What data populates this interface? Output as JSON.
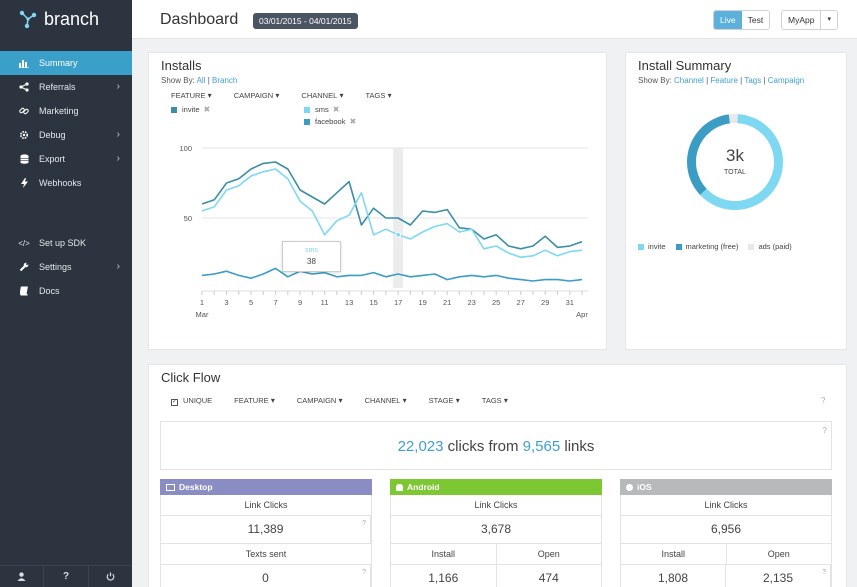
{
  "app": {
    "logo_text": "branch"
  },
  "sidebar": {
    "items": [
      {
        "label": "Summary",
        "icon": "bar-chart-icon",
        "active": true,
        "chevron": false
      },
      {
        "label": "Referrals",
        "icon": "share-icon",
        "active": false,
        "chevron": true
      },
      {
        "label": "Marketing",
        "icon": "link-icon",
        "active": false,
        "chevron": false
      },
      {
        "label": "Debug",
        "icon": "gear-icon",
        "active": false,
        "chevron": true
      },
      {
        "label": "Export",
        "icon": "database-icon",
        "active": false,
        "chevron": true
      },
      {
        "label": "Webhooks",
        "icon": "bolt-icon",
        "active": false,
        "chevron": false
      }
    ],
    "items2": [
      {
        "label": "Set up SDK",
        "icon": "code-icon",
        "chevron": false
      },
      {
        "label": "Settings",
        "icon": "wrench-icon",
        "chevron": true
      },
      {
        "label": "Docs",
        "icon": "book-icon",
        "chevron": false
      }
    ],
    "footer": [
      "user-icon",
      "help-icon",
      "power-icon"
    ]
  },
  "header": {
    "title": "Dashboard",
    "date_range": "03/01/2015 - 04/01/2015",
    "live_label": "Live",
    "test_label": "Test",
    "app_name": "MyApp"
  },
  "installs": {
    "title": "Installs",
    "show_by_prefix": "Show By:",
    "show_by_all": "All",
    "show_by_branch": "Branch",
    "filters": [
      "FEATURE",
      "CAMPAIGN",
      "CHANNEL",
      "TAGS"
    ],
    "tags": [
      {
        "label": "invite",
        "color": "#3b8ea5"
      },
      {
        "label": "sms",
        "color": "#7fd8f2"
      },
      {
        "label": "facebook",
        "color": "#3b9cc4"
      }
    ],
    "tooltip": {
      "series": "sms",
      "value": "38"
    }
  },
  "summary": {
    "title": "Install Summary",
    "show_by_prefix": "Show By:",
    "links": [
      "Channel",
      "Feature",
      "Tags",
      "Campaign"
    ],
    "total_value": "3k",
    "total_label": "TOTAL",
    "legend": [
      {
        "label": "invite",
        "color": "#7fd8f2"
      },
      {
        "label": "marketing (free)",
        "color": "#3b9cc4"
      },
      {
        "label": "ads (paid)",
        "color": "#e6e8ea"
      }
    ]
  },
  "clickflow": {
    "title": "Click Flow",
    "filters": [
      "UNIQUE",
      "FEATURE",
      "CAMPAIGN",
      "CHANNEL",
      "STAGE",
      "TAGS"
    ],
    "clicks": "22,023",
    "clicks_mid": "clicks from",
    "links": "9,565",
    "links_suffix": "links",
    "desktop": {
      "label": "Desktop",
      "color": "#8a8cc4",
      "link_clicks_label": "Link Clicks",
      "link_clicks": "11,389",
      "texts_label": "Texts sent",
      "texts": "0"
    },
    "android": {
      "label": "Android",
      "color": "#7dc832",
      "link_clicks_label": "Link Clicks",
      "link_clicks": "3,678",
      "install_label": "Install",
      "install": "1,166",
      "open_label": "Open",
      "open": "474"
    },
    "ios": {
      "label": "iOS",
      "color": "#b8b9bb",
      "link_clicks_label": "Link Clicks",
      "link_clicks": "6,956",
      "install_label": "Install",
      "install": "1,808",
      "open_label": "Open",
      "open": "2,135"
    }
  },
  "chart_data": [
    {
      "type": "line",
      "title": "Installs",
      "x": [
        1,
        2,
        3,
        4,
        5,
        6,
        7,
        8,
        9,
        10,
        11,
        12,
        13,
        14,
        15,
        16,
        17,
        18,
        19,
        20,
        21,
        22,
        23,
        24,
        25,
        26,
        27,
        28,
        29,
        30,
        31,
        32
      ],
      "xtick_labels": [
        "1",
        "3",
        "5",
        "7",
        "9",
        "11",
        "13",
        "15",
        "17",
        "19",
        "21",
        "23",
        "25",
        "27",
        "29",
        "31"
      ],
      "xmonth_labels": [
        "Mar",
        "Apr"
      ],
      "ylim": [
        0,
        100
      ],
      "yticks": [
        50,
        100
      ],
      "series": [
        {
          "name": "invite",
          "color": "#3b8ea5",
          "values": [
            60,
            63,
            75,
            78,
            85,
            89,
            90,
            85,
            70,
            65,
            60,
            68,
            76,
            45,
            57,
            50,
            50,
            45,
            55,
            54,
            56,
            43,
            42,
            35,
            38,
            30,
            28,
            30,
            37,
            29,
            30,
            33
          ]
        },
        {
          "name": "sms",
          "color": "#7fd8f2",
          "values": [
            55,
            58,
            70,
            73,
            80,
            83,
            85,
            78,
            62,
            55,
            38,
            48,
            52,
            68,
            38,
            42,
            38,
            35,
            40,
            44,
            46,
            40,
            42,
            28,
            30,
            25,
            22,
            23,
            27,
            23,
            26,
            27
          ]
        },
        {
          "name": "facebook",
          "color": "#3b9cc4",
          "values": [
            9,
            10,
            12,
            9,
            7,
            10,
            14,
            8,
            12,
            10,
            11,
            8,
            9,
            9,
            11,
            8,
            10,
            8,
            9,
            10,
            6,
            8,
            9,
            8,
            9,
            7,
            6,
            5,
            6,
            6,
            5,
            6
          ]
        }
      ]
    },
    {
      "type": "pie",
      "title": "Install Summary",
      "categories": [
        "invite",
        "marketing (free)",
        "ads (paid)"
      ],
      "values": [
        62,
        35,
        3
      ]
    }
  ]
}
